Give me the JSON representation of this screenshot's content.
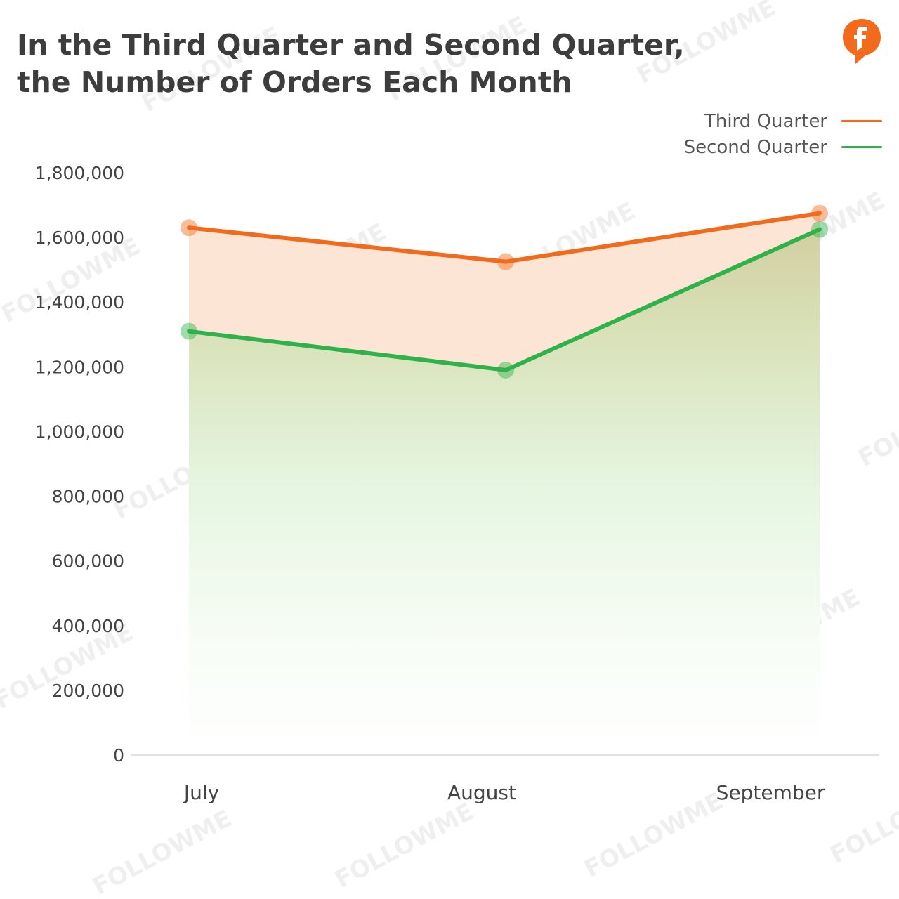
{
  "title_line1": "In the Third Quarter and Second Quarter,",
  "title_line2": "the Number of Orders Each Month",
  "watermark": "FOLLOWME",
  "colors": {
    "third_quarter": "#f26a1b",
    "second_quarter": "#2fb24c",
    "logo": "#f26a1b"
  },
  "icons": {
    "logo": "followme-logo-icon"
  },
  "chart_data": {
    "type": "area",
    "categories": [
      "July",
      "August",
      "September"
    ],
    "series": [
      {
        "name": "Third Quarter",
        "values": [
          1630000,
          1525000,
          1675000
        ]
      },
      {
        "name": "Second Quarter",
        "values": [
          1310000,
          1190000,
          1625000
        ]
      }
    ],
    "ylim": [
      0,
      1800000
    ],
    "yticks": [
      "0",
      "200,000",
      "400,000",
      "600,000",
      "800,000",
      "1,000,000",
      "1,200,000",
      "1,400,000",
      "1,600,000",
      "1,800,000"
    ],
    "legend_position": "top-right",
    "grid": false
  }
}
